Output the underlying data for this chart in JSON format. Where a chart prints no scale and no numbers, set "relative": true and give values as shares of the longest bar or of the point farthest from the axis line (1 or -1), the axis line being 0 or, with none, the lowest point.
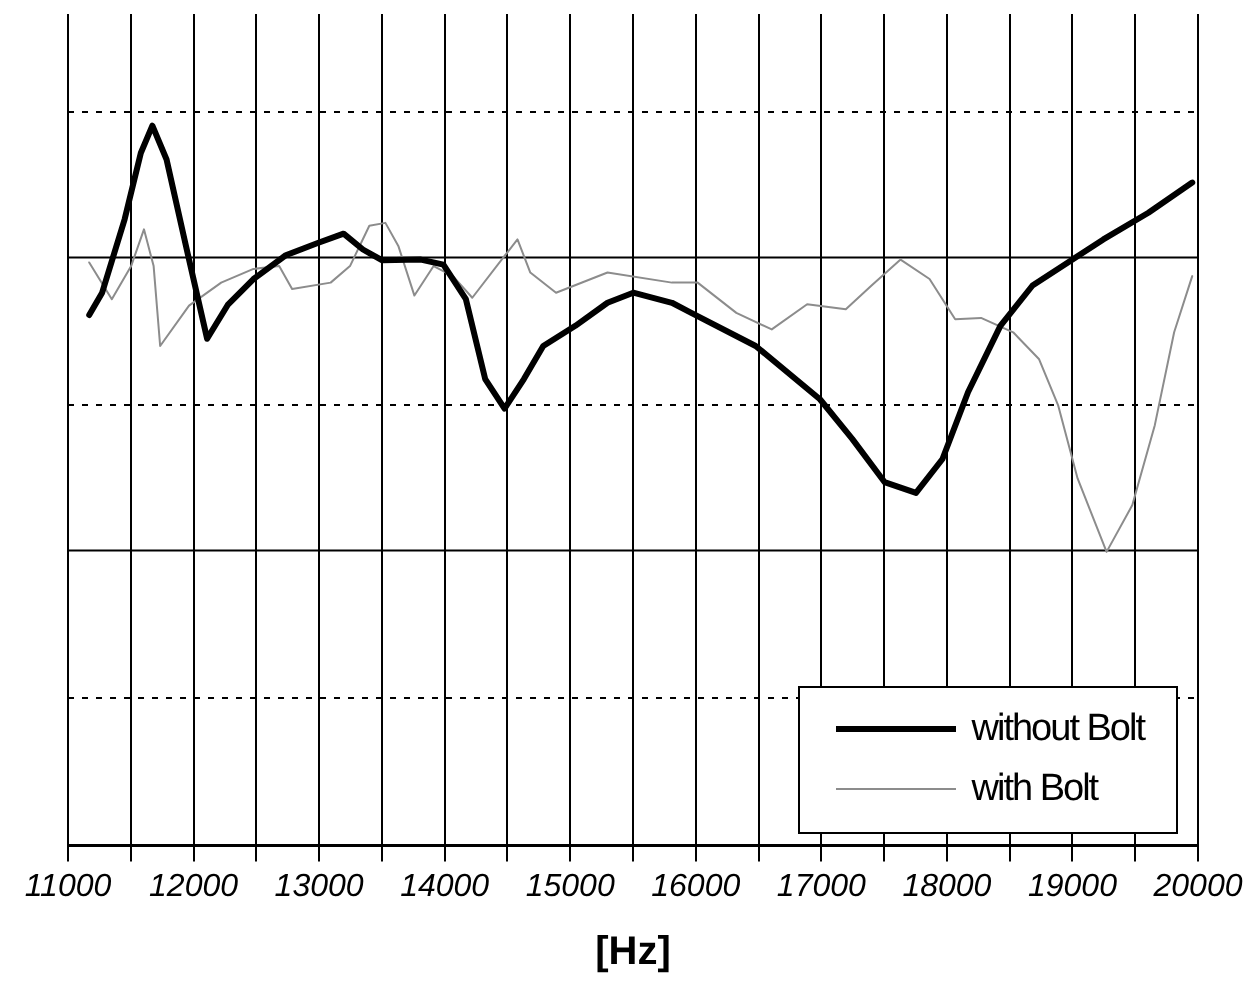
{
  "chart_data": {
    "type": "line",
    "xlabel": "[Hz]",
    "relative": true,
    "tick_labels": "x",
    "grid": "x",
    "ref_lines": [
      {
        "axis": "y",
        "value": 0.205,
        "line_style": "dotted"
      },
      {
        "axis": "y",
        "value": 0.41,
        "line_style": "solid"
      },
      {
        "axis": "y",
        "value": 0.612,
        "line_style": "dotted"
      },
      {
        "axis": "y",
        "value": 0.817,
        "line_style": "solid"
      },
      {
        "axis": "y",
        "value": 1.019,
        "line_style": "dotted"
      }
    ],
    "legend": "bottom right",
    "marker": "none",
    "line_style": "solid",
    "xlim": [
      11000,
      20000
    ],
    "xticks": [
      11000,
      {
        "value": 11500,
        "label": null
      },
      12000,
      {
        "value": 12500,
        "label": null
      },
      13000,
      {
        "value": 13500,
        "label": null
      },
      14000,
      {
        "value": 14500,
        "label": null
      },
      15000,
      {
        "value": 15500,
        "label": null
      },
      16000,
      {
        "value": 16500,
        "label": null
      },
      17000,
      {
        "value": 17500,
        "label": null
      },
      18000,
      {
        "value": 18500,
        "label": null
      },
      19000,
      {
        "value": 19500,
        "label": null
      },
      20000
    ],
    "series": [
      {
        "name": "without Bolt",
        "color": "#000000",
        "x": [
          11169,
          11272,
          11451,
          11580,
          11672,
          11785,
          11938,
          12108,
          12272,
          12477,
          12734,
          12989,
          13195,
          13349,
          13503,
          13811,
          13990,
          14169,
          14323,
          14477,
          14631,
          14785,
          15041,
          15297,
          15502,
          15810,
          15964,
          16477,
          16989,
          17246,
          17503,
          17754,
          17965,
          18169,
          18426,
          18682,
          18964,
          19246,
          19605,
          19954
        ],
        "values": [
          0.737,
          0.768,
          0.87,
          0.962,
          1,
          0.953,
          0.834,
          0.704,
          0.751,
          0.787,
          0.82,
          0.837,
          0.85,
          0.828,
          0.813,
          0.814,
          0.807,
          0.759,
          0.648,
          0.607,
          0.648,
          0.694,
          0.722,
          0.754,
          0.768,
          0.754,
          0.74,
          0.694,
          0.62,
          0.565,
          0.505,
          0.49,
          0.537,
          0.63,
          0.722,
          0.778,
          0.81,
          0.842,
          0.879,
          0.921
        ]
      },
      {
        "name": "with Bolt",
        "color": "#8c8c8c",
        "x": [
          11169,
          11349,
          11503,
          11605,
          11682,
          11734,
          11964,
          12220,
          12477,
          12682,
          12785,
          13092,
          13246,
          13400,
          13528,
          13631,
          13759,
          13912,
          14066,
          14220,
          14477,
          14580,
          14682,
          14887,
          15297,
          15810,
          16015,
          16323,
          16605,
          16887,
          17195,
          17400,
          17631,
          17862,
          18066,
          18272,
          18528,
          18733,
          18887,
          19041,
          19272,
          19477,
          19656,
          19810,
          19954
        ],
        "values": [
          0.81,
          0.759,
          0.805,
          0.856,
          0.805,
          0.694,
          0.75,
          0.782,
          0.801,
          0.805,
          0.773,
          0.782,
          0.805,
          0.861,
          0.865,
          0.833,
          0.764,
          0.805,
          0.791,
          0.761,
          0.819,
          0.842,
          0.796,
          0.768,
          0.796,
          0.782,
          0.782,
          0.74,
          0.717,
          0.752,
          0.745,
          0.778,
          0.814,
          0.787,
          0.731,
          0.733,
          0.713,
          0.676,
          0.611,
          0.51,
          0.408,
          0.473,
          0.584,
          0.713,
          0.791
        ]
      }
    ]
  }
}
